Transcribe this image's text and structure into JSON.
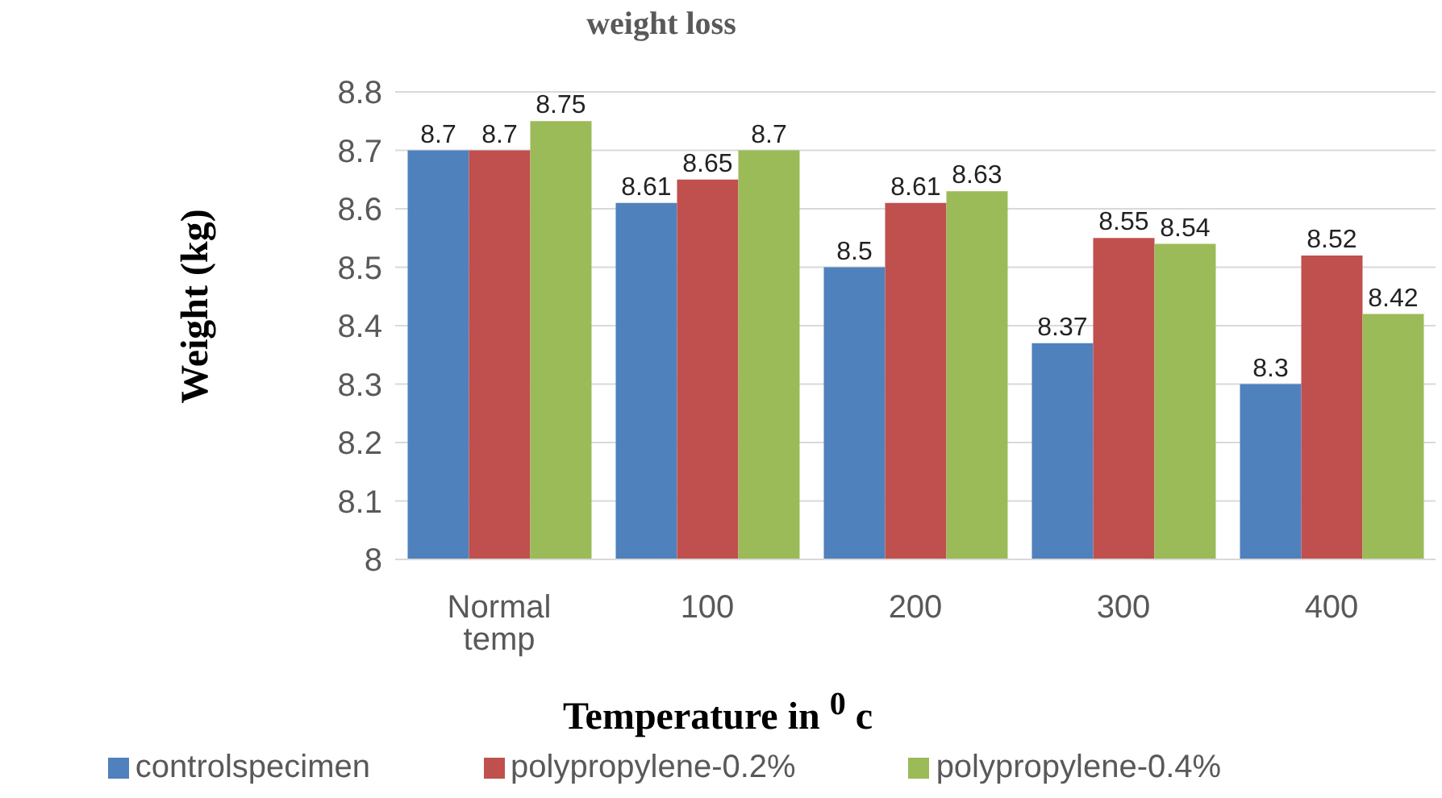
{
  "chart_data": {
    "type": "bar",
    "title": "weight loss",
    "xlabel": "Temperature in $^{0}$ c",
    "ylabel": "Weight (kg)",
    "categories": [
      "Normal temp",
      "100",
      "200",
      "300",
      "400"
    ],
    "series": [
      {
        "name": "controlspecimen",
        "color": "#4f81bd",
        "values": [
          8.7,
          8.61,
          8.5,
          8.37,
          8.3
        ]
      },
      {
        "name": "polypropylene-0.2%",
        "color": "#c0504d",
        "values": [
          8.7,
          8.65,
          8.61,
          8.55,
          8.52
        ]
      },
      {
        "name": "polypropylene-0.4%",
        "color": "#9bbb59",
        "values": [
          8.75,
          8.7,
          8.63,
          8.54,
          8.42
        ]
      }
    ],
    "ylim": [
      8,
      8.8
    ],
    "yticks": [
      8,
      8.1,
      8.2,
      8.3,
      8.4,
      8.5,
      8.6,
      8.7,
      8.8
    ],
    "grid": "y",
    "legend": "bottom",
    "data_labels": true
  }
}
